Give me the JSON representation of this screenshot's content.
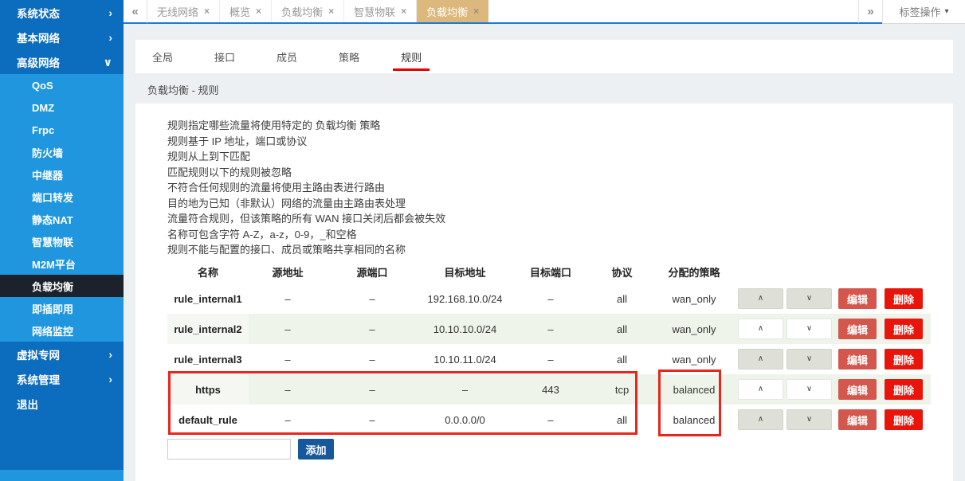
{
  "tabbar": {
    "scroll_left_icon": "«",
    "scroll_right_icon": "»",
    "close_icon": "×",
    "caret_icon": "▾",
    "tabs": [
      {
        "label": "无线网络"
      },
      {
        "label": "概览"
      },
      {
        "label": "负载均衡"
      },
      {
        "label": "智慧物联"
      },
      {
        "label": "负载均衡",
        "active": true
      }
    ],
    "actions_label": "标签操作"
  },
  "sidebar": {
    "items": [
      {
        "label": "系统状态",
        "kind": "group",
        "chevron": "›"
      },
      {
        "label": "基本网络",
        "kind": "group",
        "chevron": "›"
      },
      {
        "label": "高级网络",
        "kind": "group",
        "chevron": "∨",
        "expanded": true
      },
      {
        "label": "QoS",
        "kind": "sub"
      },
      {
        "label": "DMZ",
        "kind": "sub"
      },
      {
        "label": "Frpc",
        "kind": "sub"
      },
      {
        "label": "防火墙",
        "kind": "sub"
      },
      {
        "label": "中继器",
        "kind": "sub"
      },
      {
        "label": "端口转发",
        "kind": "sub"
      },
      {
        "label": "静态NAT",
        "kind": "sub"
      },
      {
        "label": "智慧物联",
        "kind": "sub"
      },
      {
        "label": "M2M平台",
        "kind": "sub"
      },
      {
        "label": "负载均衡",
        "kind": "sub",
        "active": true
      },
      {
        "label": "即插即用",
        "kind": "sub"
      },
      {
        "label": "网络监控",
        "kind": "sub"
      },
      {
        "label": "虚拟专网",
        "kind": "group",
        "chevron": "›"
      },
      {
        "label": "系统管理",
        "kind": "group",
        "chevron": "›"
      },
      {
        "label": "退出",
        "kind": "group",
        "chevron": ""
      }
    ]
  },
  "subtabs": {
    "items": [
      {
        "label": "全局"
      },
      {
        "label": "接口"
      },
      {
        "label": "成员"
      },
      {
        "label": "策略"
      },
      {
        "label": "规则",
        "active": true
      }
    ]
  },
  "page": {
    "breadcrumb": "负载均衡 - 规则",
    "description_lines": [
      "规则指定哪些流量将使用特定的 负载均衡 策略",
      "规则基于 IP 地址，端口或协议",
      "规则从上到下匹配",
      "匹配规则以下的规则被忽略",
      "不符合任何规则的流量将使用主路由表进行路由",
      "目的地为已知（非默认）网络的流量由主路由表处理",
      "流量符合规则，但该策略的所有 WAN 接口关闭后都会被失效",
      "名称可包含字符 A-Z，a-z，0-9，_和空格",
      "规则不能与配置的接口、成员或策略共享相同的名称"
    ]
  },
  "table": {
    "headers": [
      "名称",
      "源地址",
      "源端口",
      "目标地址",
      "目标端口",
      "协议",
      "分配的策略"
    ],
    "rows": [
      {
        "name": "rule_internal1",
        "src_addr": "–",
        "src_port": "–",
        "dest_addr": "192.168.10.0/24",
        "dest_port": "–",
        "protocol": "all",
        "policy": "wan_only"
      },
      {
        "name": "rule_internal2",
        "src_addr": "–",
        "src_port": "–",
        "dest_addr": "10.10.10.0/24",
        "dest_port": "–",
        "protocol": "all",
        "policy": "wan_only"
      },
      {
        "name": "rule_internal3",
        "src_addr": "–",
        "src_port": "–",
        "dest_addr": "10.10.11.0/24",
        "dest_port": "–",
        "protocol": "all",
        "policy": "wan_only"
      },
      {
        "name": "https",
        "src_addr": "–",
        "src_port": "–",
        "dest_addr": "–",
        "dest_port": "443",
        "protocol": "tcp",
        "policy": "balanced"
      },
      {
        "name": "default_rule",
        "src_addr": "–",
        "src_port": "–",
        "dest_addr": "0.0.0.0/0",
        "dest_port": "–",
        "protocol": "all",
        "policy": "balanced"
      }
    ],
    "row_buttons": {
      "up": "∧",
      "down": "∨",
      "edit": "编辑",
      "delete": "删除"
    }
  },
  "footer": {
    "add_input_value": "",
    "add_button_label": "添加"
  },
  "colors": {
    "sidebar_group_bg": "#0c6cbe",
    "sidebar_sub_bg": "#1f96dd",
    "sidebar_active_bg": "#1c222b",
    "active_tab_bg": "#dcb87c",
    "tabbar_underline": "#1b79d8",
    "subtab_underline": "#e60000",
    "row_stripe": "#eef4ea",
    "edit_button": "#d4574e",
    "delete_button": "#e9150b",
    "add_button": "#17579c",
    "annotation_red": "#e8261d"
  }
}
